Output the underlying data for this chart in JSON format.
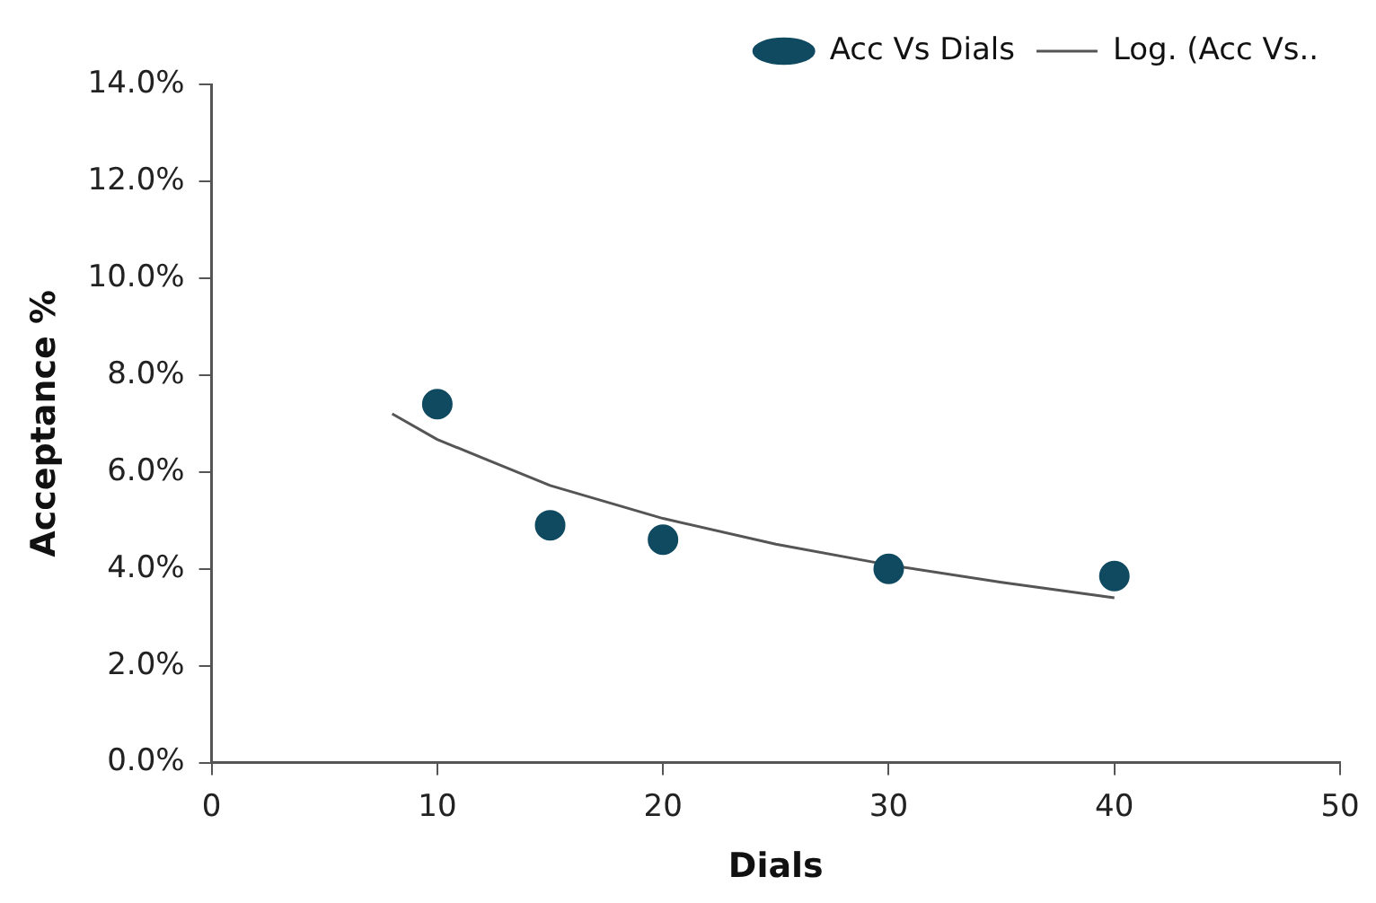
{
  "chart_data": {
    "type": "scatter",
    "xlabel": "Dials",
    "ylabel": "Acceptance %",
    "xlim": [
      0,
      50
    ],
    "xticks": [
      0,
      10,
      20,
      30,
      40,
      50
    ],
    "ylim": [
      0,
      14
    ],
    "yticks": [
      {
        "value": 0,
        "label": "0.0%"
      },
      {
        "value": 2,
        "label": "2.0%"
      },
      {
        "value": 4,
        "label": "4.0%"
      },
      {
        "value": 6,
        "label": "6.0%"
      },
      {
        "value": 8,
        "label": "8.0%"
      },
      {
        "value": 10,
        "label": "10.0%"
      },
      {
        "value": 12,
        "label": "12.0%"
      },
      {
        "value": 14,
        "label": "14.0%"
      }
    ],
    "grid": false,
    "legend": "top right",
    "series": [
      {
        "name": "Acc Vs Dials",
        "type": "scatter",
        "color": "#0f4a60",
        "marker": "circle",
        "x": [
          10,
          15,
          20,
          30,
          40
        ],
        "values": [
          7.4,
          4.9,
          4.6,
          4.0,
          3.85
        ]
      },
      {
        "name": "Log. (Acc Vs..",
        "type": "line",
        "color": "#555555",
        "marker": "none",
        "line_style": "solid",
        "x": [
          8,
          10,
          15,
          20,
          25,
          30,
          35,
          40
        ],
        "values": [
          7.2,
          6.67,
          5.72,
          5.04,
          4.51,
          4.08,
          3.72,
          3.4
        ]
      }
    ]
  }
}
